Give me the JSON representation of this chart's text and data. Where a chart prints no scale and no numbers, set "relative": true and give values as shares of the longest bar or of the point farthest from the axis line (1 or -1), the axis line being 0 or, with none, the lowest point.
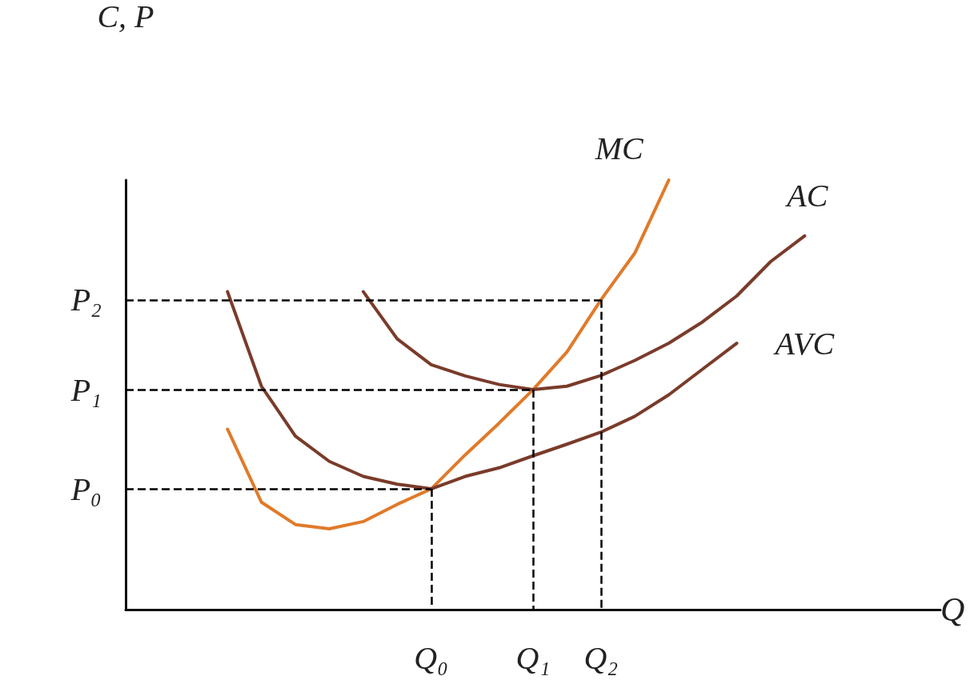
{
  "chart_data": {
    "type": "line",
    "relative": true,
    "xlabel": "Q",
    "ylabel": "C, P",
    "marker": "none",
    "categories": [
      null,
      null,
      null,
      null,
      null,
      null,
      null,
      null,
      null,
      "Q₀",
      null,
      null,
      "Q₁",
      null,
      "Q₂",
      null,
      null,
      null,
      null,
      null,
      null,
      null,
      null,
      null,
      null
    ],
    "series": [
      {
        "name": "MC",
        "color": "#e07a2a",
        "values": [
          null,
          null,
          null,
          0.42,
          0.25,
          0.198,
          0.188,
          0.205,
          0.245,
          0.281,
          0.36,
          0.434,
          0.512,
          0.6,
          0.721,
          0.83,
          1.0,
          null,
          null,
          null,
          null,
          null,
          null,
          null,
          null
        ]
      },
      {
        "name": "AC",
        "color": "#7a3b2a",
        "values": [
          null,
          null,
          null,
          null,
          null,
          null,
          null,
          0.74,
          0.63,
          0.57,
          0.544,
          0.524,
          0.512,
          0.52,
          0.545,
          0.58,
          0.62,
          0.67,
          0.73,
          0.81,
          0.87,
          null,
          null,
          null,
          null
        ]
      },
      {
        "name": "AVC",
        "color": "#7a3b2a",
        "values": [
          null,
          null,
          null,
          0.74,
          0.52,
          0.404,
          0.345,
          0.31,
          0.292,
          0.281,
          0.31,
          0.33,
          0.358,
          0.385,
          0.413,
          0.45,
          0.5,
          0.56,
          0.62,
          null,
          null,
          null,
          null,
          null,
          null
        ]
      }
    ],
    "ref_lines": [
      {
        "axis": "y",
        "value": 0.281,
        "label": "P₀",
        "color": "#000000",
        "line_style": "dashed"
      },
      {
        "axis": "y",
        "value": 0.512,
        "label": "P₁",
        "color": "#000000",
        "line_style": "dashed"
      },
      {
        "axis": "y",
        "value": 0.721,
        "label": "P₂",
        "color": "#000000",
        "line_style": "dashed"
      },
      {
        "axis": "x",
        "value": "Q₀",
        "color": "#000000",
        "line_style": "dashed"
      },
      {
        "axis": "x",
        "value": "Q₁",
        "color": "#000000",
        "line_style": "dashed"
      },
      {
        "axis": "x",
        "value": "Q₂",
        "color": "#000000",
        "line_style": "dashed"
      }
    ]
  }
}
